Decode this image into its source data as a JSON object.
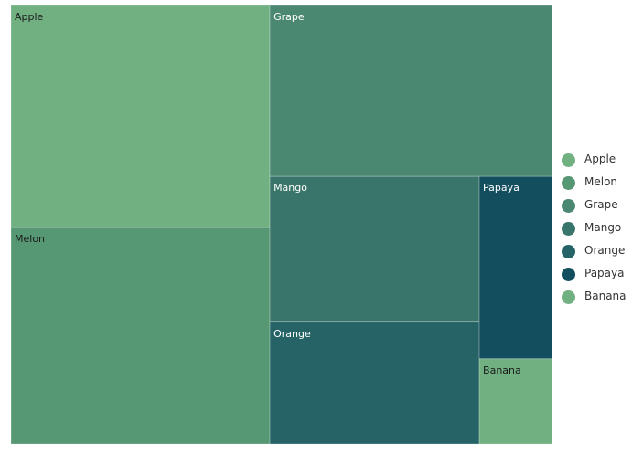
{
  "chart_data": {
    "type": "treemap",
    "items": [
      {
        "name": "Apple",
        "value": 19.4,
        "color": "#71b081"
      },
      {
        "name": "Melon",
        "value": 18.9,
        "color": "#579874"
      },
      {
        "name": "Grape",
        "value": 16.3,
        "color": "#4a8872"
      },
      {
        "name": "Mango",
        "value": 10.3,
        "color": "#3a756b"
      },
      {
        "name": "Orange",
        "value": 8.6,
        "color": "#256366"
      },
      {
        "name": "Papaya",
        "value": 4.5,
        "color": "#134e5e"
      },
      {
        "name": "Banana",
        "value": 2.1,
        "color": "#71b081"
      }
    ],
    "legend_placement": "right"
  }
}
